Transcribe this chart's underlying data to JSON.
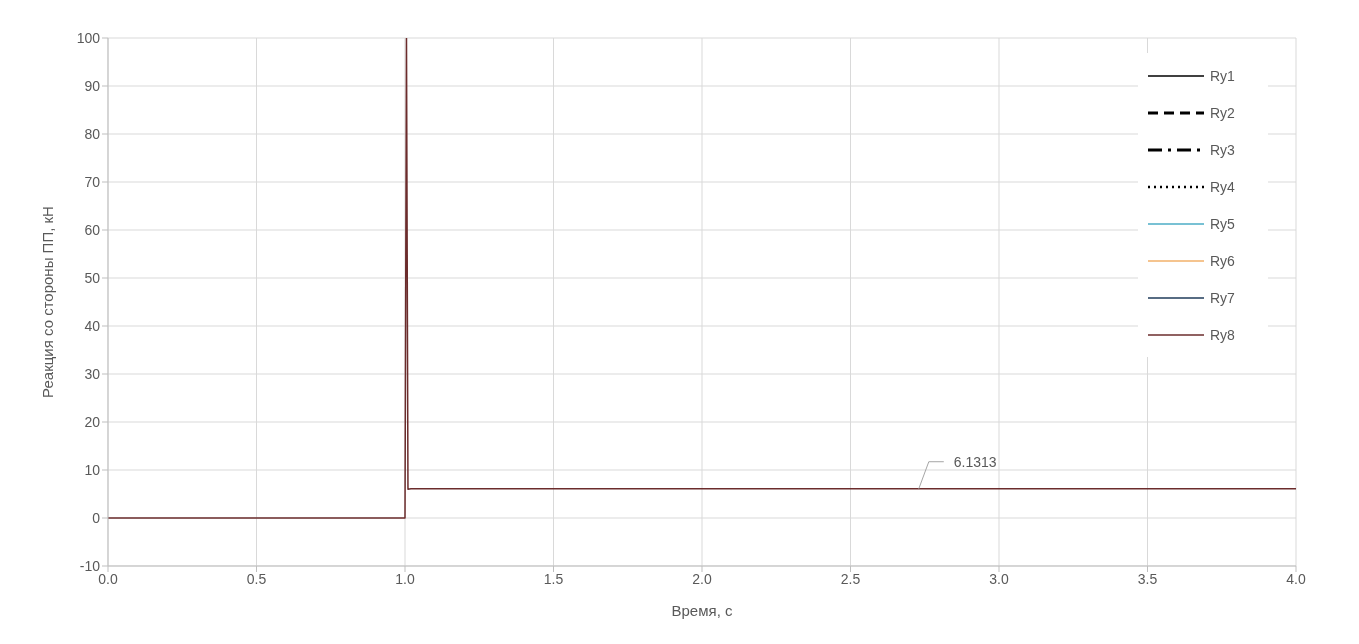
{
  "chart_data": {
    "type": "line",
    "xlabel": "Время, с",
    "ylabel": "Реакция со стороны ПП, кН",
    "x": [
      0,
      1.0,
      1.005,
      1.01,
      1.02,
      4.0
    ],
    "series": [
      {
        "name": "Ry1",
        "color": "#000000",
        "line_style": "solid",
        "values": [
          null,
          null,
          null,
          null,
          null,
          null
        ]
      },
      {
        "name": "Ry2",
        "color": "#000000",
        "line_style": "dashed",
        "values": [
          null,
          null,
          null,
          null,
          null,
          null
        ]
      },
      {
        "name": "Ry3",
        "color": "#000000",
        "line_style": "dashdot",
        "values": [
          null,
          null,
          null,
          null,
          null,
          null
        ]
      },
      {
        "name": "Ry4",
        "color": "#000000",
        "line_style": "dotted",
        "values": [
          null,
          null,
          null,
          null,
          null,
          null
        ]
      },
      {
        "name": "Ry5",
        "color": "#4bacc6",
        "line_style": "solid",
        "values": [
          null,
          null,
          null,
          null,
          null,
          null
        ]
      },
      {
        "name": "Ry6",
        "color": "#f2b06a",
        "line_style": "solid",
        "values": [
          null,
          null,
          null,
          null,
          null,
          null
        ]
      },
      {
        "name": "Ry7",
        "color": "#1f3b5a",
        "line_style": "solid",
        "values": [
          null,
          null,
          null,
          null,
          null,
          null
        ]
      },
      {
        "name": "Ry8",
        "color": "#6b2c2c",
        "line_style": "solid",
        "values": [
          0,
          0,
          100,
          6,
          6.1,
          6.1
        ]
      }
    ],
    "annotations": [
      {
        "text": "6.1313",
        "x": 2.73,
        "y": 6.1
      }
    ],
    "xlim": [
      0,
      4
    ],
    "ylim": [
      -10,
      100
    ],
    "xticks": [
      {
        "value": 0,
        "label": "0.0"
      },
      0.5,
      {
        "value": 1,
        "label": "1.0"
      },
      1.5,
      {
        "value": 2,
        "label": "2.0"
      },
      2.5,
      {
        "value": 3,
        "label": "3.0"
      },
      3.5,
      {
        "value": 4,
        "label": "4.0"
      }
    ],
    "yticks": [
      -10,
      0,
      10,
      20,
      30,
      40,
      50,
      60,
      70,
      80,
      90,
      100
    ],
    "grid": true,
    "legend": "top right",
    "marker": "none"
  }
}
